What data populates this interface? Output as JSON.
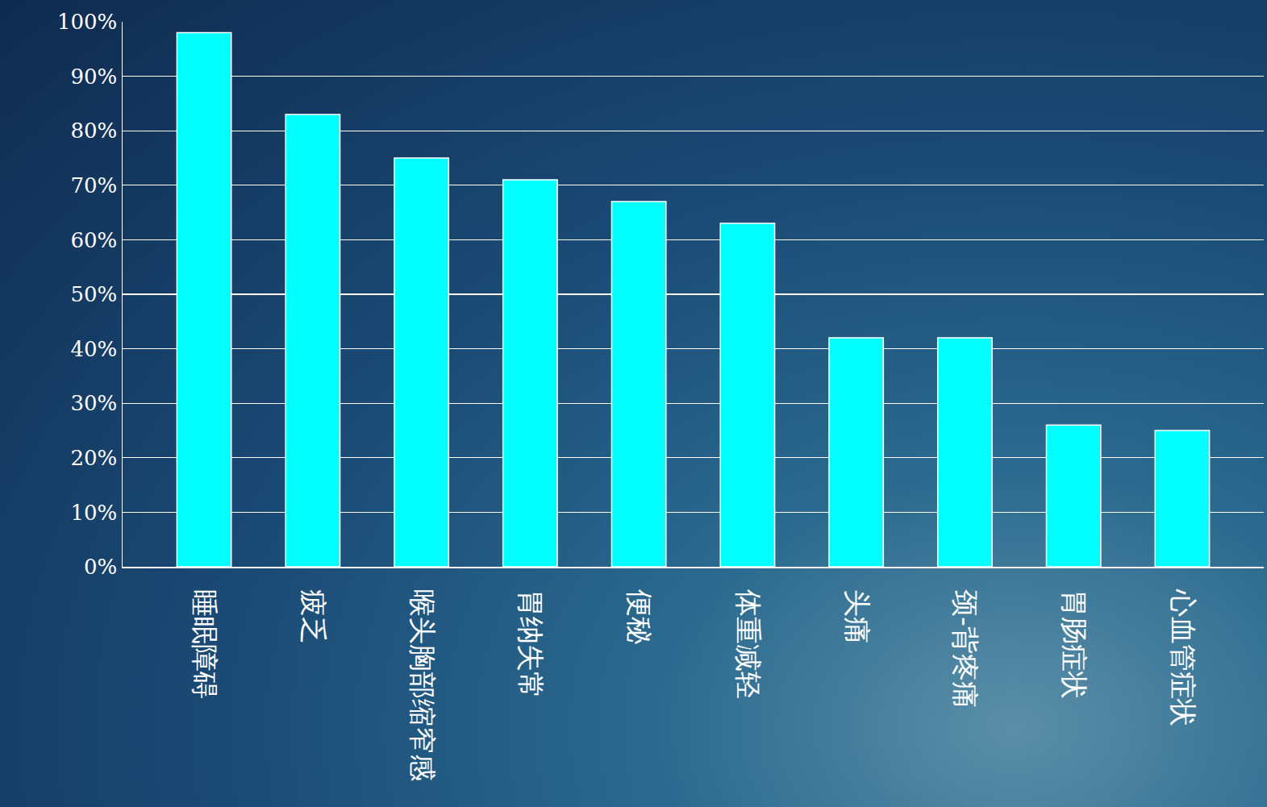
{
  "chart_data": {
    "type": "bar",
    "categories": [
      "睡眠障碍",
      "疲乏",
      "喉头胸部缩窄感",
      "胃纳失常",
      "便秘",
      "体重减轻",
      "头痛",
      "颈-背疼痛",
      "胃肠症状",
      "心血管症状"
    ],
    "values": [
      98,
      83,
      75,
      71,
      67,
      63,
      42,
      42,
      26,
      25
    ],
    "color": "#00ffff",
    "ylim": [
      0,
      100
    ],
    "yticks": [
      {
        "value": 0,
        "label": "0%"
      },
      {
        "value": 10,
        "label": "10%"
      },
      {
        "value": 20,
        "label": "20%"
      },
      {
        "value": 30,
        "label": "30%"
      },
      {
        "value": 40,
        "label": "40%"
      },
      {
        "value": 50,
        "label": "50%"
      },
      {
        "value": 60,
        "label": "60%"
      },
      {
        "value": 70,
        "label": "70%"
      },
      {
        "value": 80,
        "label": "80%"
      },
      {
        "value": 90,
        "label": "90%"
      },
      {
        "value": 100,
        "label": "100%"
      }
    ],
    "grid": true
  }
}
